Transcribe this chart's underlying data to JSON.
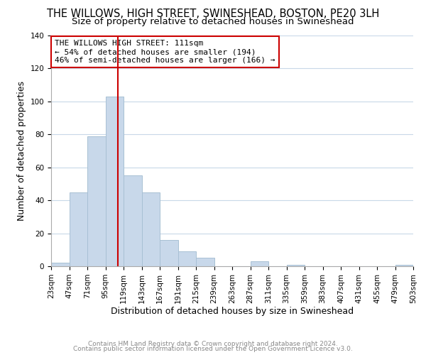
{
  "title": "THE WILLOWS, HIGH STREET, SWINESHEAD, BOSTON, PE20 3LH",
  "subtitle": "Size of property relative to detached houses in Swineshead",
  "xlabel": "Distribution of detached houses by size in Swineshead",
  "ylabel": "Number of detached properties",
  "bar_color": "#c8d8ea",
  "bar_edge_color": "#a8c0d4",
  "bin_edges": [
    23,
    47,
    71,
    95,
    119,
    143,
    167,
    191,
    215,
    239,
    263,
    287,
    311,
    335,
    359,
    383,
    407,
    431,
    455,
    479,
    503
  ],
  "bin_labels": [
    "23sqm",
    "47sqm",
    "71sqm",
    "95sqm",
    "119sqm",
    "143sqm",
    "167sqm",
    "191sqm",
    "215sqm",
    "239sqm",
    "263sqm",
    "287sqm",
    "311sqm",
    "335sqm",
    "359sqm",
    "383sqm",
    "407sqm",
    "431sqm",
    "455sqm",
    "479sqm",
    "503sqm"
  ],
  "counts": [
    2,
    45,
    79,
    103,
    55,
    45,
    16,
    9,
    5,
    0,
    0,
    3,
    0,
    1,
    0,
    0,
    0,
    0,
    0,
    1
  ],
  "ylim": [
    0,
    140
  ],
  "yticks": [
    0,
    20,
    40,
    60,
    80,
    100,
    120,
    140
  ],
  "vline_x": 111,
  "annotation_title": "THE WILLOWS HIGH STREET: 111sqm",
  "annotation_line1": "← 54% of detached houses are smaller (194)",
  "annotation_line2": "46% of semi-detached houses are larger (166) →",
  "footer_line1": "Contains HM Land Registry data © Crown copyright and database right 2024.",
  "footer_line2": "Contains public sector information licensed under the Open Government Licence v3.0.",
  "background_color": "#ffffff",
  "vline_color": "#cc0000",
  "grid_color": "#c8d8e8",
  "title_fontsize": 10.5,
  "subtitle_fontsize": 9.5,
  "axis_label_fontsize": 9,
  "tick_fontsize": 7.5,
  "footer_fontsize": 6.5,
  "annotation_fontsize": 8
}
